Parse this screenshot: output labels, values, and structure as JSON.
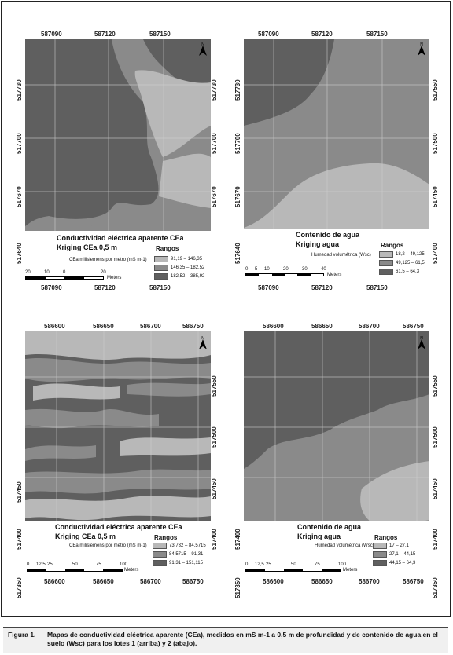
{
  "figure": {
    "label": "Figura 1.",
    "caption": "Mapas de conductividad eléctrica aparente (CEa), medidos en mS m-1 a 0,5 m de profundidad y de contenido de agua en el suelo (Wsc) para los lotes 1 (arriba) y 2 (abajo)."
  },
  "colors": {
    "light": "#b8b8b8",
    "mid": "#8a8a8a",
    "dark": "#5f5f5f"
  },
  "maps": {
    "tl": {
      "top_ticks": [
        "587090",
        "587120",
        "587150"
      ],
      "bottom_ticks": [
        "587090",
        "587120",
        "587150"
      ],
      "left_ticks": [
        "517730",
        "517700",
        "517670",
        "517640"
      ],
      "right_ticks": [
        "517730",
        "517700",
        "517670"
      ],
      "title": "Conductividad eléctrica aparente CEa",
      "subtitle": "Kriging CEa 0,5 m",
      "units": "CEa milisiemens por metro (mS m-1)",
      "rangos": "Rangos",
      "items": [
        "91,19 – 146,35",
        "146,35 – 182,52",
        "182,52 – 385,92"
      ],
      "scale_labels": [
        "20",
        "10",
        "0",
        "20"
      ],
      "scale_unit": "Meters",
      "north": "N"
    },
    "tr": {
      "top_ticks": [
        "587090",
        "587120",
        "587150"
      ],
      "bottom_ticks": [
        "587090",
        "587120",
        "587150"
      ],
      "left_ticks": [
        "517730",
        "517700",
        "517670",
        "517640"
      ],
      "right_ticks": [
        "517550",
        "517500",
        "517450",
        "517400"
      ],
      "title": "Contenido de agua",
      "subtitle": "Kriging agua",
      "units": "Humedad volumétrica (Wsc)",
      "rangos": "Rangos",
      "items": [
        "18,2 – 49,125",
        "49,125 – 61,5",
        "61,5 – 64,3"
      ],
      "scale_labels": [
        "0",
        "5",
        "10",
        "20",
        "30",
        "40"
      ],
      "scale_unit": "Meters",
      "north": "N"
    },
    "bl": {
      "top_ticks": [
        "586600",
        "586650",
        "586700",
        "586750"
      ],
      "bottom_ticks": [
        "586600",
        "586650",
        "586700",
        "586750"
      ],
      "left_ticks": [
        "517450",
        "517400",
        "517350"
      ],
      "right_ticks": [
        "517550",
        "517500",
        "517450",
        "517400"
      ],
      "title": "Conductividad eléctrica aparente CEa",
      "subtitle": "Kriging CEa 0,5 m",
      "units": "CEa milisiemens por metro (mS m-1)",
      "rangos": "Rangos",
      "items": [
        "73,732 – 84,5715",
        "84,5715 – 91,31",
        "91,31 – 151,115"
      ],
      "scale_labels": [
        "0",
        "12,5",
        "25",
        "50",
        "75",
        "100"
      ],
      "scale_unit": "Meters",
      "north": "N"
    },
    "br": {
      "top_ticks": [
        "586600",
        "586650",
        "586700",
        "586750"
      ],
      "bottom_ticks": [
        "586600",
        "586650",
        "586700",
        "586750"
      ],
      "left_ticks": [
        "517400",
        "517350"
      ],
      "right_ticks": [
        "517550",
        "517500",
        "517450",
        "517400",
        "517350"
      ],
      "title": "Contenido de agua",
      "subtitle": "Kriging agua",
      "units": "Humedad volumétrica (Wsc)",
      "rangos": "Rangos",
      "items": [
        "17 – 27,1",
        "27,1 – 44,15",
        "44,15 – 64,3"
      ],
      "scale_labels": [
        "0",
        "12,5",
        "25",
        "50",
        "75",
        "100"
      ],
      "scale_unit": "Meters",
      "north": "N"
    }
  }
}
